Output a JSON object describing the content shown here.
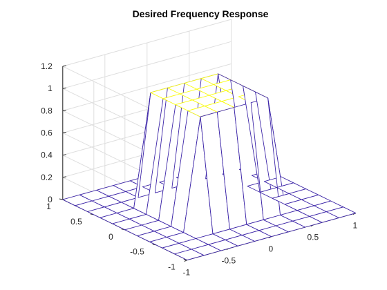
{
  "chart_data": {
    "type": "mesh",
    "title": "Desired Frequency Response",
    "xlabel": "",
    "ylabel": "",
    "zlabel": "",
    "xlim": [
      -1,
      1
    ],
    "ylim": [
      -1,
      1
    ],
    "zlim": [
      0,
      1.2
    ],
    "grid": true,
    "x": [
      -1,
      -0.8,
      -0.6,
      -0.4,
      -0.2,
      0,
      0.2,
      0.4,
      0.6,
      0.8,
      1
    ],
    "y": [
      -1,
      -0.8,
      -0.6,
      -0.4,
      -0.2,
      0,
      0.2,
      0.4,
      0.6,
      0.8,
      1
    ],
    "z": [
      [
        0,
        0,
        0,
        0,
        0,
        0,
        0,
        0,
        0,
        0,
        0
      ],
      [
        0,
        0,
        0,
        0,
        0,
        0,
        0,
        0,
        0,
        0,
        0
      ],
      [
        0,
        0,
        0,
        0,
        0,
        0,
        0,
        0,
        0,
        0,
        0
      ],
      [
        0,
        0,
        0,
        1,
        1,
        1,
        1,
        1,
        0,
        0,
        0
      ],
      [
        0,
        0,
        0,
        1,
        1,
        1,
        1,
        1,
        0,
        0,
        0
      ],
      [
        0,
        0,
        0,
        1,
        1,
        1,
        1,
        1,
        0,
        0,
        0
      ],
      [
        0,
        0,
        0,
        1,
        1,
        1,
        1,
        1,
        0,
        0,
        0
      ],
      [
        0,
        0,
        0,
        1,
        1,
        1,
        1,
        1,
        0,
        0,
        0
      ],
      [
        0,
        0,
        0,
        0,
        0,
        0,
        0,
        0,
        0,
        0,
        0
      ],
      [
        0,
        0,
        0,
        0,
        0,
        0,
        0,
        0,
        0,
        0,
        0
      ],
      [
        0,
        0,
        0,
        0,
        0,
        0,
        0,
        0,
        0,
        0,
        0
      ]
    ],
    "xticks": [
      -1,
      -0.5,
      0,
      0.5,
      1
    ],
    "xtick_labels": [
      "-1",
      "-0.5",
      "0",
      "0.5",
      "1"
    ],
    "yticks": [
      -1,
      -0.5,
      0,
      0.5,
      1
    ],
    "ytick_labels": [
      "-1",
      "-0.5",
      "0",
      "0.5",
      "1"
    ],
    "zticks": [
      0,
      0.2,
      0.4,
      0.6,
      0.8,
      1,
      1.2
    ],
    "ztick_labels": [
      "0",
      "0.2",
      "0.4",
      "0.6",
      "0.8",
      "1",
      "1.2"
    ],
    "colormap": {
      "low": "#3d26a8",
      "high": "#f9fb0e"
    }
  }
}
